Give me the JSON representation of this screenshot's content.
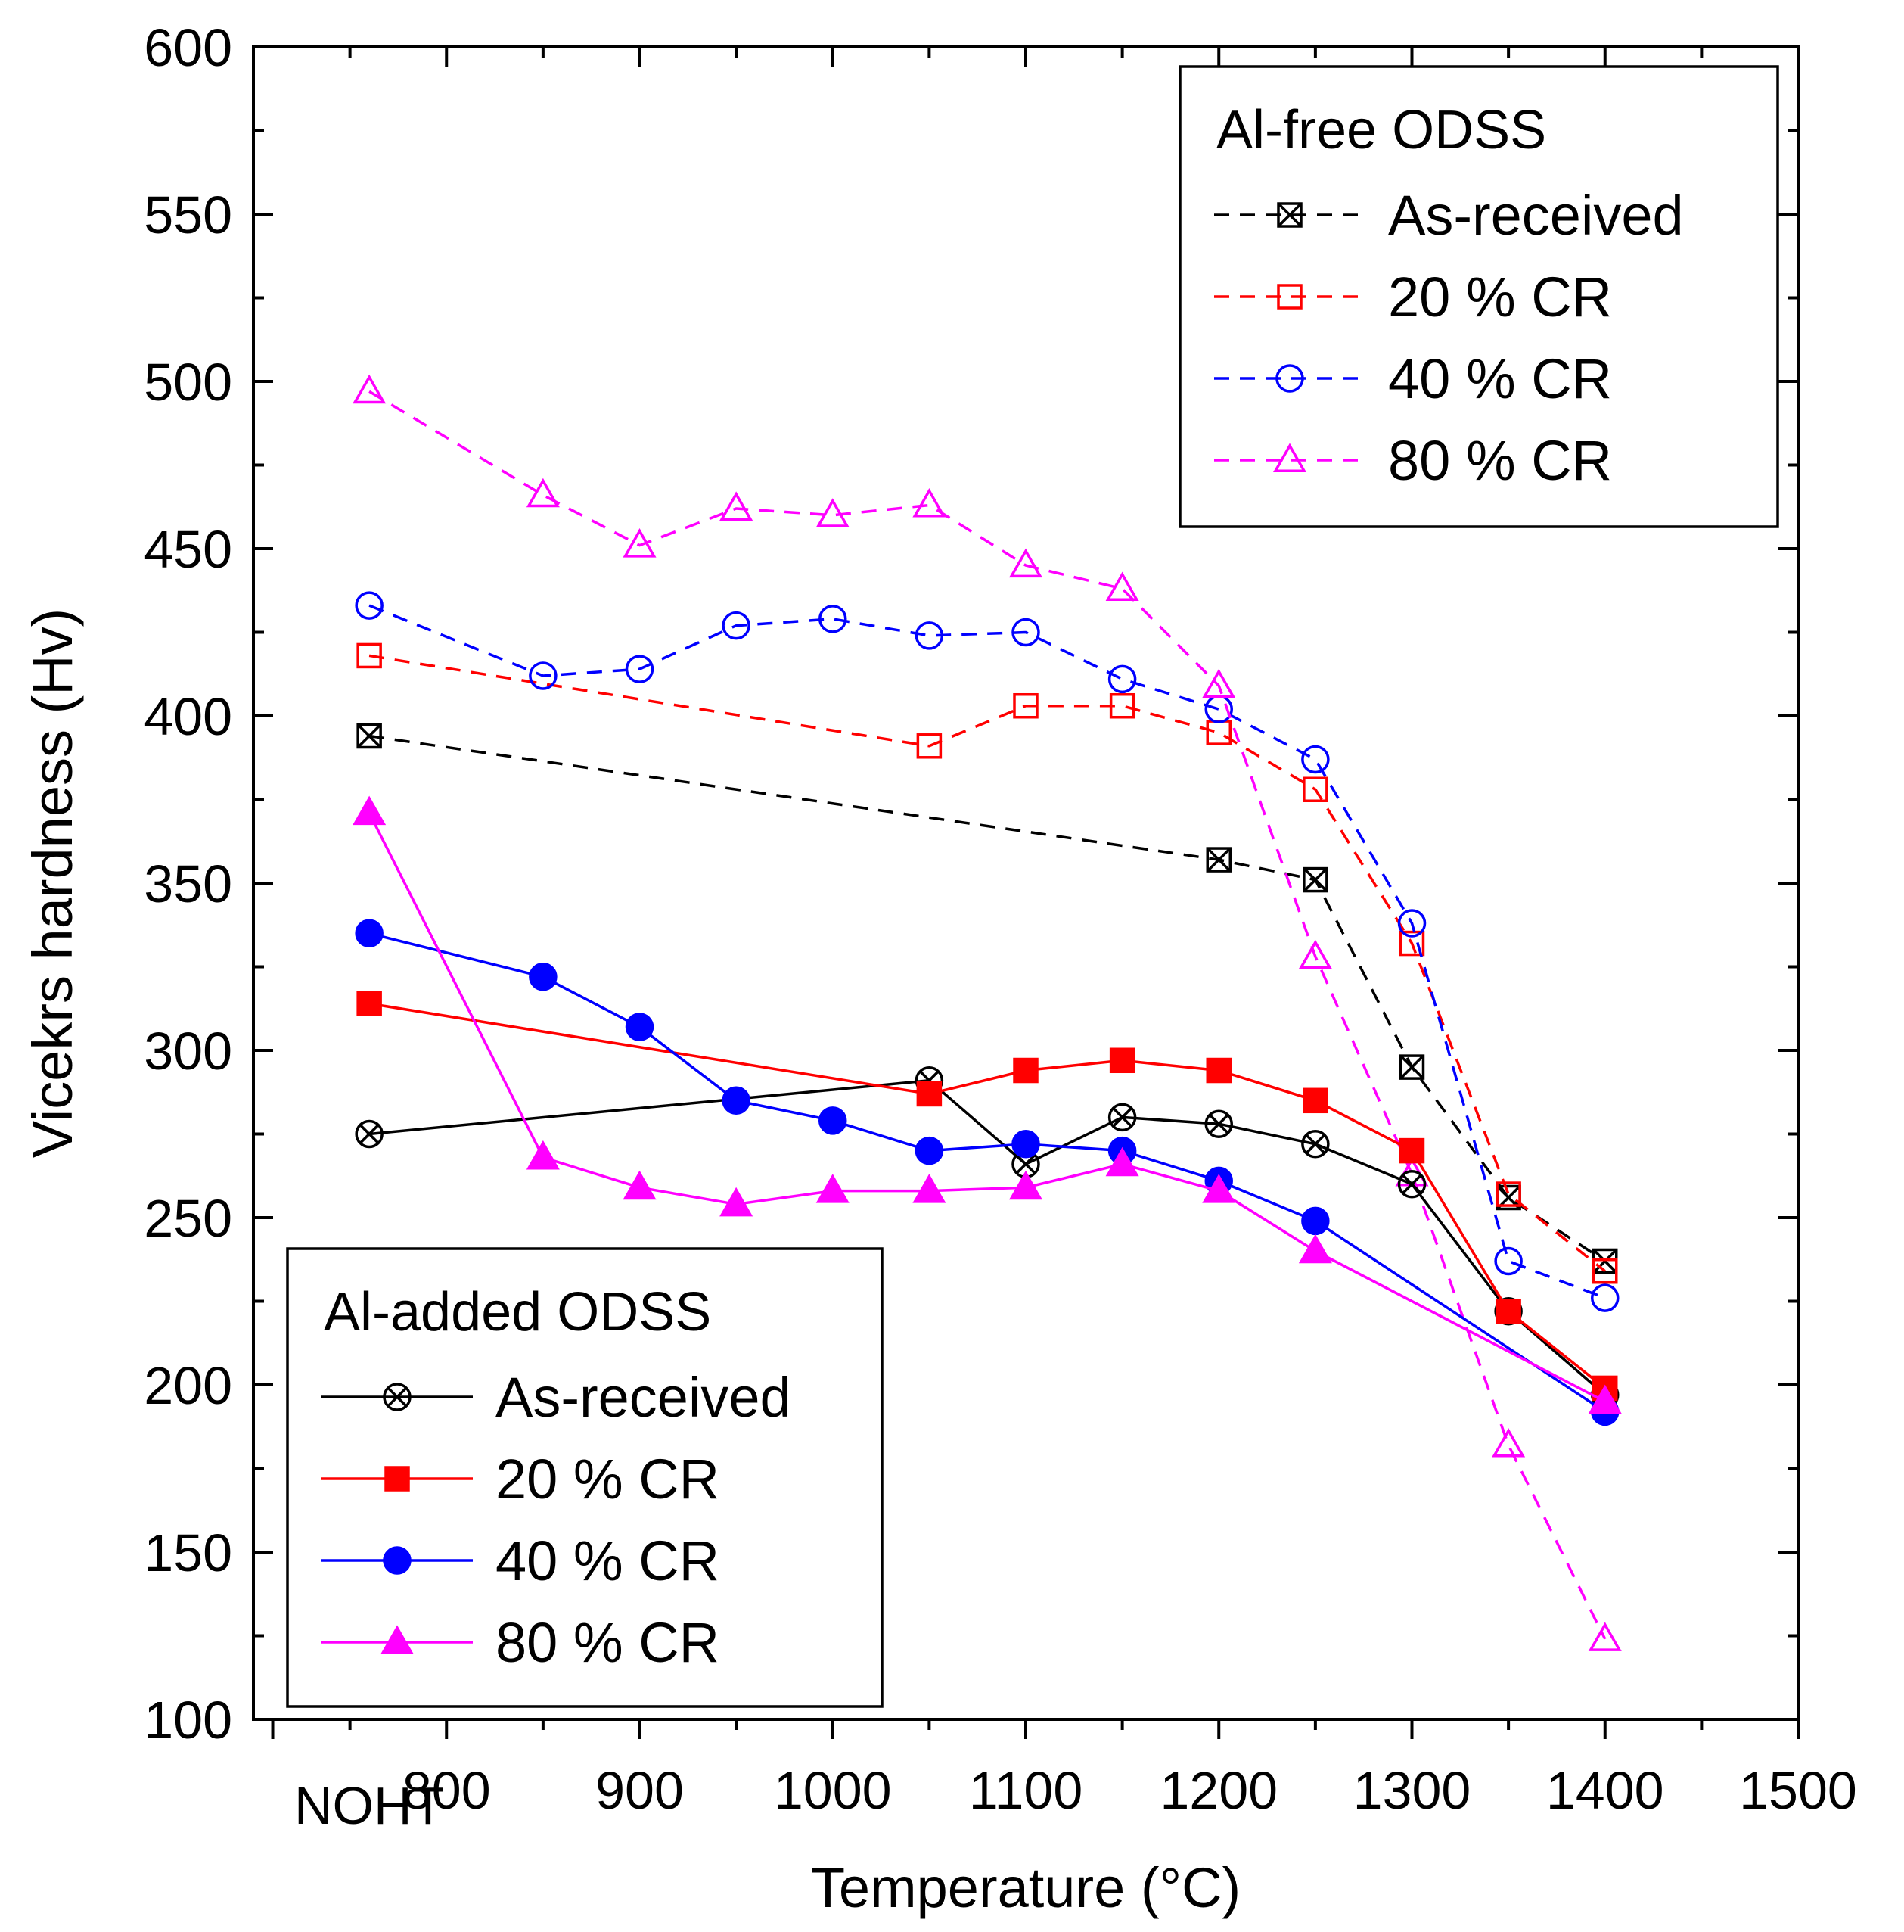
{
  "chart_data": {
    "type": "line",
    "title": "",
    "xlabel": "Temperature (°C)",
    "ylabel": "Vicekrs hardness (Hv)",
    "xlim": [
      700,
      1500
    ],
    "ylim": [
      100,
      600
    ],
    "x_ticks": [
      {
        "value": 760,
        "label": "NOHT"
      },
      {
        "value": 800,
        "label": "800"
      },
      {
        "value": 900,
        "label": "900"
      },
      {
        "value": 1000,
        "label": "1000"
      },
      {
        "value": 1100,
        "label": "1100"
      },
      {
        "value": 1200,
        "label": "1200"
      },
      {
        "value": 1300,
        "label": "1300"
      },
      {
        "value": 1400,
        "label": "1400"
      },
      {
        "value": 1500,
        "label": "1500"
      }
    ],
    "y_ticks": [
      "100",
      "150",
      "200",
      "250",
      "300",
      "350",
      "400",
      "450",
      "500",
      "550",
      "600"
    ],
    "legends": [
      {
        "title": "Al-free ODSS",
        "position": "top-right",
        "series": [
          "free_as",
          "free_20",
          "free_40",
          "free_80"
        ]
      },
      {
        "title": "Al-added ODSS",
        "position": "bottom-left",
        "series": [
          "added_as",
          "added_20",
          "added_40",
          "added_80"
        ]
      }
    ],
    "series": [
      {
        "id": "free_as",
        "group": "Al-free ODSS",
        "name": "As-received",
        "color": "#000000",
        "dashed": true,
        "marker": "square-x",
        "filled": false,
        "points": [
          [
            760,
            394
          ],
          [
            1200,
            357
          ],
          [
            1250,
            351
          ],
          [
            1300,
            295
          ],
          [
            1350,
            256
          ],
          [
            1400,
            237
          ]
        ]
      },
      {
        "id": "free_20",
        "group": "Al-free ODSS",
        "name": "20 % CR",
        "color": "#ff0000",
        "dashed": true,
        "marker": "square",
        "filled": false,
        "points": [
          [
            760,
            418
          ],
          [
            1050,
            391
          ],
          [
            1100,
            403
          ],
          [
            1150,
            403
          ],
          [
            1200,
            395
          ],
          [
            1250,
            378
          ],
          [
            1300,
            332
          ],
          [
            1350,
            257
          ],
          [
            1400,
            234
          ]
        ]
      },
      {
        "id": "free_40",
        "group": "Al-free ODSS",
        "name": "40 % CR",
        "color": "#0000ff",
        "dashed": true,
        "marker": "circle",
        "filled": false,
        "points": [
          [
            760,
            433
          ],
          [
            850,
            412
          ],
          [
            900,
            414
          ],
          [
            950,
            427
          ],
          [
            1000,
            429
          ],
          [
            1050,
            424
          ],
          [
            1100,
            425
          ],
          [
            1150,
            411
          ],
          [
            1200,
            402
          ],
          [
            1250,
            387
          ],
          [
            1300,
            338
          ],
          [
            1350,
            237
          ],
          [
            1400,
            226
          ]
        ]
      },
      {
        "id": "free_80",
        "group": "Al-free ODSS",
        "name": "80 % CR",
        "color": "#ff00ff",
        "dashed": true,
        "marker": "triangle",
        "filled": false,
        "points": [
          [
            760,
            497
          ],
          [
            850,
            466
          ],
          [
            900,
            451
          ],
          [
            950,
            462
          ],
          [
            1000,
            460
          ],
          [
            1050,
            463
          ],
          [
            1100,
            445
          ],
          [
            1150,
            438
          ],
          [
            1200,
            409
          ],
          [
            1250,
            328
          ],
          [
            1300,
            263
          ],
          [
            1350,
            182
          ],
          [
            1400,
            124
          ]
        ]
      },
      {
        "id": "added_as",
        "group": "Al-added ODSS",
        "name": "As-received",
        "color": "#000000",
        "dashed": false,
        "marker": "circle-x",
        "filled": false,
        "points": [
          [
            760,
            275
          ],
          [
            1050,
            291
          ],
          [
            1100,
            266
          ],
          [
            1150,
            280
          ],
          [
            1200,
            278
          ],
          [
            1250,
            272
          ],
          [
            1300,
            260
          ],
          [
            1350,
            222
          ],
          [
            1400,
            197
          ]
        ]
      },
      {
        "id": "added_20",
        "group": "Al-added ODSS",
        "name": "20 % CR",
        "color": "#ff0000",
        "dashed": false,
        "marker": "square",
        "filled": true,
        "points": [
          [
            760,
            314
          ],
          [
            1050,
            287
          ],
          [
            1100,
            294
          ],
          [
            1150,
            297
          ],
          [
            1200,
            294
          ],
          [
            1250,
            285
          ],
          [
            1300,
            270
          ],
          [
            1350,
            222
          ],
          [
            1400,
            199
          ]
        ]
      },
      {
        "id": "added_40",
        "group": "Al-added ODSS",
        "name": "40 % CR",
        "color": "#0000ff",
        "dashed": false,
        "marker": "circle",
        "filled": true,
        "points": [
          [
            760,
            335
          ],
          [
            850,
            322
          ],
          [
            900,
            307
          ],
          [
            950,
            285
          ],
          [
            1000,
            279
          ],
          [
            1050,
            270
          ],
          [
            1100,
            272
          ],
          [
            1150,
            270
          ],
          [
            1200,
            261
          ],
          [
            1250,
            249
          ],
          [
            1400,
            192
          ]
        ]
      },
      {
        "id": "added_80",
        "group": "Al-added ODSS",
        "name": "80 % CR",
        "color": "#ff00ff",
        "dashed": false,
        "marker": "triangle",
        "filled": true,
        "points": [
          [
            760,
            371
          ],
          [
            850,
            268
          ],
          [
            900,
            259
          ],
          [
            950,
            254
          ],
          [
            1000,
            258
          ],
          [
            1050,
            258
          ],
          [
            1100,
            259
          ],
          [
            1150,
            266
          ],
          [
            1200,
            258
          ],
          [
            1250,
            240
          ],
          [
            1400,
            195
          ]
        ]
      }
    ]
  }
}
